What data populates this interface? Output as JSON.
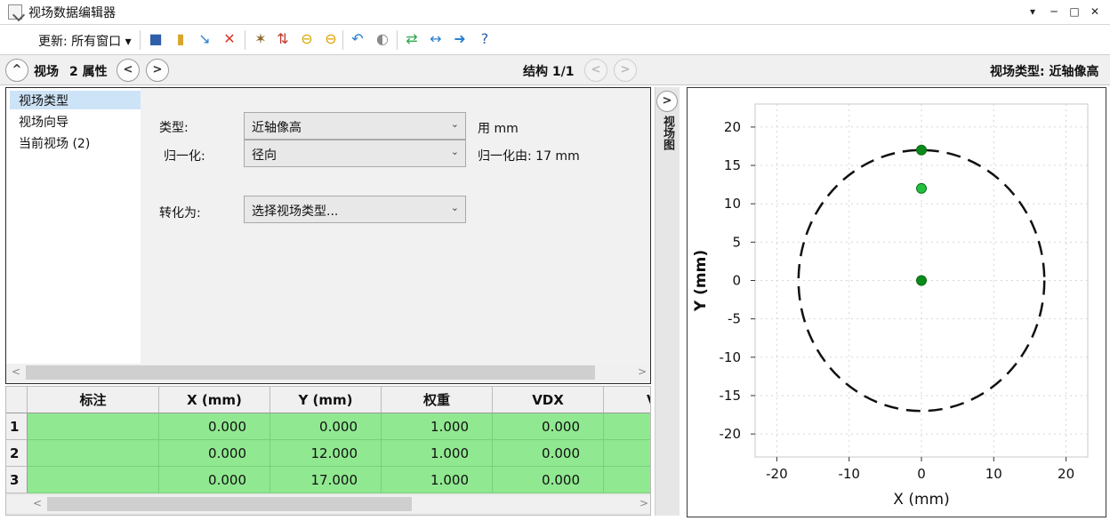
{
  "window": {
    "title": "视场数据编辑器",
    "controls": [
      "▾",
      "─",
      "□",
      "✕"
    ]
  },
  "toolbar": {
    "update_label": "更新: 所有窗口 ▾",
    "icons": [
      {
        "name": "save-icon",
        "glyph": "■",
        "color": "#2f5fa8"
      },
      {
        "name": "open-book-icon",
        "glyph": "▮",
        "color": "#d9a52a"
      },
      {
        "name": "arrow-down-right-icon",
        "glyph": "↘",
        "color": "#2a7fd0"
      },
      {
        "name": "delete-icon",
        "glyph": "✕",
        "color": "#d83a2a"
      },
      {
        "name": "wand-icon",
        "glyph": "✶",
        "color": "#8a6a2a"
      },
      {
        "name": "sort-numeric-icon",
        "glyph": "⇅",
        "color": "#c0392b"
      },
      {
        "name": "circle-yellow-icon",
        "glyph": "⊖",
        "color": "#d4a800"
      },
      {
        "name": "circle-gold-icon",
        "glyph": "⊖",
        "color": "#e0a000"
      },
      {
        "name": "undo-arrow-icon",
        "glyph": "↶",
        "color": "#2a7fd0"
      },
      {
        "name": "toggle-icon",
        "glyph": "◐",
        "color": "#888888"
      },
      {
        "name": "swap-arrows-icon",
        "glyph": "⇄",
        "color": "#2aa84a"
      },
      {
        "name": "compress-arrows-icon",
        "glyph": "↔",
        "color": "#2a7fd0"
      },
      {
        "name": "arrow-right-icon",
        "glyph": "➜",
        "color": "#2a7fd0"
      },
      {
        "name": "help-icon",
        "glyph": "?",
        "color": "#2f5fa8"
      }
    ]
  },
  "header": {
    "section_label": "视场",
    "props_label": "2 属性",
    "structure_label": "结构 1/1",
    "field_type_label": "视场类型: 近轴像高"
  },
  "tree": {
    "items": [
      "视场类型",
      "视场向导",
      "当前视场 (2)"
    ],
    "selected": 0
  },
  "form": {
    "type_label": "类型:",
    "type_value": "近轴像高",
    "unit_label": "用 mm",
    "normalize_label": "归一化:",
    "normalize_value": "径向",
    "normalize_by_label": "归一化由: 17 mm",
    "convert_label": "转化为:",
    "convert_value": "选择视场类型..."
  },
  "table": {
    "columns": [
      "标注",
      "X (mm)",
      "Y (mm)",
      "权重",
      "VDX",
      "V"
    ],
    "rows": [
      {
        "num": "1",
        "cells": [
          "",
          "0.000",
          "0.000",
          "1.000",
          "0.000"
        ]
      },
      {
        "num": "2",
        "cells": [
          "",
          "0.000",
          "12.000",
          "1.000",
          "0.000"
        ]
      },
      {
        "num": "3",
        "cells": [
          "",
          "0.000",
          "17.000",
          "1.000",
          "0.000"
        ]
      }
    ]
  },
  "side_tab": {
    "label": "视场图"
  },
  "chart_data": {
    "type": "scatter",
    "xlabel": "X (mm)",
    "ylabel": "Y (mm)",
    "xlim": [
      -23,
      23
    ],
    "ylim": [
      -23,
      23
    ],
    "x_ticks": [
      -20,
      -10,
      0,
      10,
      20
    ],
    "y_ticks": [
      20,
      15,
      10,
      5,
      0,
      -5,
      -10,
      -15,
      -20
    ],
    "grid": true,
    "points": [
      {
        "x": 0,
        "y": 0,
        "color": "#0a8a1a"
      },
      {
        "x": 0,
        "y": 12,
        "color": "#22c040"
      },
      {
        "x": 0,
        "y": 17,
        "color": "#0a8a1a"
      }
    ],
    "circle_radius": 17
  }
}
